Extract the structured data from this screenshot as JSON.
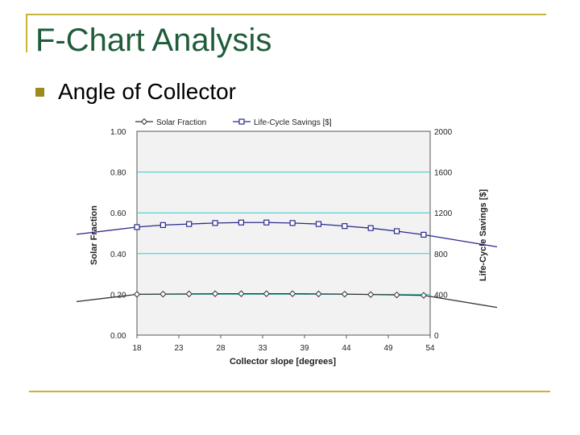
{
  "slide": {
    "title": "F-Chart Analysis",
    "bullet": "Angle of Collector"
  },
  "colors": {
    "title": "#1f5c3a",
    "accent_line": "#c9b43a",
    "bullet": "#9c8b1c",
    "plot_bg": "#f2f2f2",
    "grid": "#33cccc",
    "series_1": "#333333",
    "series_2": "#2a2a8c"
  },
  "chart_data": {
    "type": "line",
    "xlabel": "Collector slope [degrees]",
    "ylabel": "Solar Fraction",
    "y2label": "Life-Cycle Savings [$]",
    "x_ticks": [
      "18",
      "23",
      "28",
      "33",
      "39",
      "44",
      "49",
      "54"
    ],
    "xlim": [
      18,
      54
    ],
    "y_ticks": [
      "0.00",
      "0.20",
      "0.40",
      "0.60",
      "0.80",
      "1.00"
    ],
    "ylim": [
      0,
      1
    ],
    "y2_ticks": [
      "0",
      "400",
      "800",
      "1200",
      "1600",
      "2000"
    ],
    "y2lim": [
      0,
      2000
    ],
    "grid": true,
    "legend_position": "top",
    "series": [
      {
        "name": "Solar Fraction",
        "axis": "left",
        "marker": "diamond",
        "x": [
          18,
          21.2,
          24.4,
          27.6,
          30.8,
          33.9,
          37.1,
          40.3,
          43.5,
          46.7,
          49.9,
          53.2
        ],
        "values": [
          0.2,
          0.201,
          0.202,
          0.203,
          0.203,
          0.203,
          0.203,
          0.202,
          0.201,
          0.199,
          0.197,
          0.195
        ]
      },
      {
        "name": "Life-Cycle Savings [$]",
        "axis": "right",
        "marker": "square",
        "x": [
          18,
          21.2,
          24.4,
          27.6,
          30.8,
          33.9,
          37.1,
          40.3,
          43.5,
          46.7,
          49.9,
          53.2
        ],
        "values": [
          1060,
          1080,
          1090,
          1100,
          1105,
          1105,
          1100,
          1090,
          1070,
          1050,
          1020,
          985
        ]
      }
    ]
  }
}
